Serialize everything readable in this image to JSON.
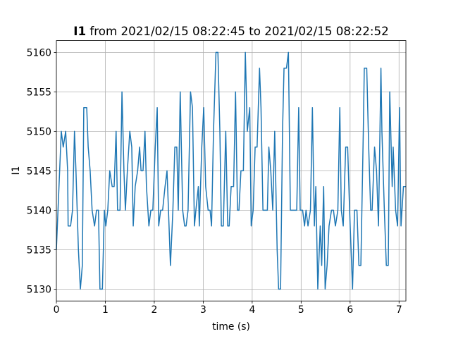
{
  "chart_data": {
    "type": "line",
    "title_prefix": "I1",
    "title": "from 2021/02/15 08:22:45 to 2021/02/15 08:22:52",
    "x_label": "time (s)",
    "y_label": "I1",
    "color": "#1f77b4",
    "grid": true,
    "xlim": [
      0,
      7.14
    ],
    "ylim": [
      5128.5,
      5161.5
    ],
    "xticks": [
      0,
      1,
      2,
      3,
      4,
      5,
      6,
      7
    ],
    "yticks": [
      5130,
      5135,
      5140,
      5145,
      5150,
      5155,
      5160
    ],
    "x": [
      0,
      0.1,
      0.14,
      0.19,
      0.23,
      0.24,
      0.29,
      0.33,
      0.37,
      0.4,
      0.45,
      0.49,
      0.53,
      0.56,
      0.62,
      0.65,
      0.69,
      0.73,
      0.78,
      0.82,
      0.86,
      0.89,
      0.94,
      0.98,
      1.01,
      1.05,
      1.09,
      1.14,
      1.18,
      1.22,
      1.25,
      1.3,
      1.34,
      1.38,
      1.41,
      1.45,
      1.5,
      1.54,
      1.57,
      1.61,
      1.66,
      1.7,
      1.73,
      1.77,
      1.81,
      1.84,
      1.89,
      1.93,
      1.97,
      2.02,
      2.06,
      2.09,
      2.13,
      2.17,
      2.22,
      2.26,
      2.29,
      2.33,
      2.38,
      2.42,
      2.46,
      2.49,
      2.53,
      2.58,
      2.62,
      2.65,
      2.69,
      2.74,
      2.78,
      2.82,
      2.85,
      2.9,
      2.92,
      2.97,
      3.01,
      3.05,
      3.1,
      3.14,
      3.17,
      3.21,
      3.26,
      3.3,
      3.34,
      3.37,
      3.41,
      3.46,
      3.5,
      3.53,
      3.57,
      3.62,
      3.66,
      3.7,
      3.73,
      3.77,
      3.82,
      3.86,
      3.9,
      3.95,
      3.98,
      4.02,
      4.06,
      4.1,
      4.15,
      4.18,
      4.22,
      4.26,
      4.31,
      4.34,
      4.38,
      4.42,
      4.46,
      4.51,
      4.54,
      4.58,
      4.62,
      4.65,
      4.7,
      4.74,
      4.78,
      4.82,
      4.87,
      4.91,
      4.95,
      4.98,
      5.03,
      5.07,
      5.1,
      5.14,
      5.19,
      5.23,
      5.27,
      5.3,
      5.34,
      5.39,
      5.42,
      5.46,
      5.49,
      5.53,
      5.57,
      5.62,
      5.66,
      5.7,
      5.75,
      5.79,
      5.82,
      5.86,
      5.91,
      5.95,
      5.99,
      6.02,
      6.05,
      6.09,
      6.14,
      6.18,
      6.22,
      6.27,
      6.29,
      6.34,
      6.38,
      6.42,
      6.45,
      6.5,
      6.54,
      6.58,
      6.63,
      6.65,
      6.7,
      6.74,
      6.78,
      6.81,
      6.86,
      6.88,
      6.93,
      6.97,
      7.01,
      7.04,
      7.09,
      7.14
    ],
    "values": [
      5135,
      5150,
      5148,
      5150,
      5145,
      5138,
      5138,
      5140,
      5150,
      5145,
      5135,
      5130,
      5133,
      5153,
      5153,
      5148,
      5145,
      5140,
      5138,
      5140,
      5140,
      5130,
      5130,
      5140,
      5138,
      5140,
      5145,
      5143,
      5143,
      5150,
      5140,
      5140,
      5155,
      5145,
      5140,
      5145,
      5150,
      5148,
      5138,
      5143,
      5145,
      5148,
      5145,
      5145,
      5150,
      5143,
      5138,
      5140,
      5140,
      5148,
      5153,
      5138,
      5140,
      5140,
      5143,
      5145,
      5140,
      5133,
      5140,
      5148,
      5148,
      5140,
      5155,
      5140,
      5138,
      5138,
      5140,
      5155,
      5153,
      5138,
      5140,
      5143,
      5138,
      5148,
      5153,
      5143,
      5140,
      5140,
      5138,
      5150,
      5160,
      5160,
      5150,
      5138,
      5138,
      5150,
      5138,
      5138,
      5143,
      5143,
      5155,
      5140,
      5140,
      5145,
      5145,
      5160,
      5150,
      5153,
      5138,
      5140,
      5148,
      5148,
      5158,
      5153,
      5140,
      5140,
      5140,
      5148,
      5145,
      5140,
      5150,
      5135,
      5130,
      5130,
      5150,
      5158,
      5158,
      5160,
      5140,
      5140,
      5140,
      5140,
      5153,
      5140,
      5140,
      5138,
      5140,
      5138,
      5140,
      5153,
      5138,
      5143,
      5130,
      5138,
      5133,
      5143,
      5130,
      5133,
      5138,
      5140,
      5140,
      5138,
      5140,
      5153,
      5140,
      5138,
      5148,
      5148,
      5140,
      5135,
      5130,
      5140,
      5140,
      5133,
      5133,
      5150,
      5158,
      5158,
      5148,
      5140,
      5140,
      5148,
      5145,
      5138,
      5158,
      5150,
      5140,
      5133,
      5133,
      5155,
      5143,
      5148,
      5140,
      5138,
      5153,
      5138,
      5143,
      5143
    ]
  }
}
